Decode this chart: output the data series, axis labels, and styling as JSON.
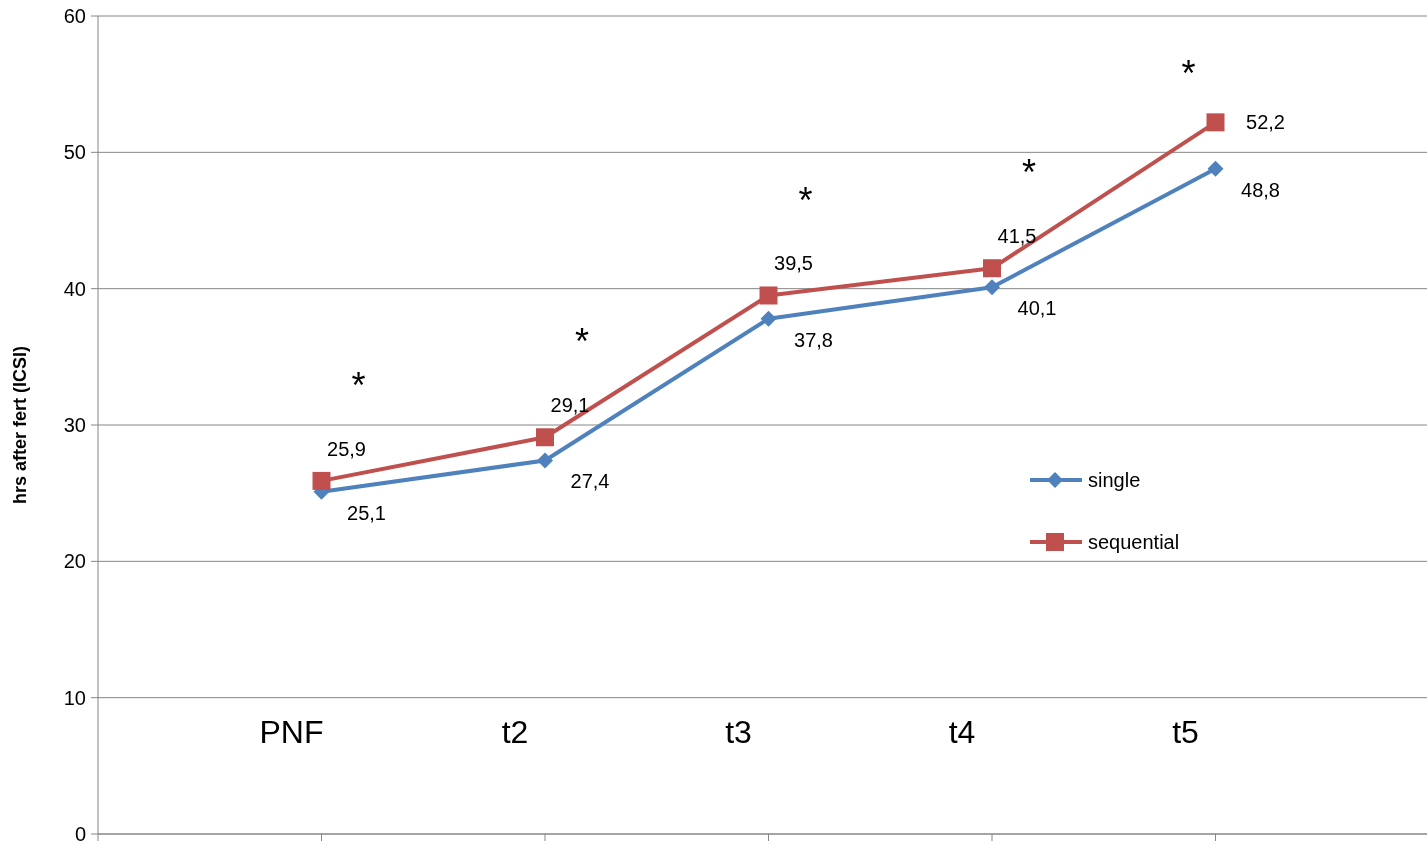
{
  "chart_data": {
    "type": "line",
    "ylabel": "hrs after fert (ICSI)",
    "categories": [
      "PNF",
      "t2",
      "t3",
      "t4",
      "t5"
    ],
    "series": [
      {
        "name": "single",
        "color": "#4f81bd",
        "marker": "diamond",
        "values": [
          25.1,
          27.4,
          37.8,
          40.1,
          48.8
        ],
        "value_labels": [
          "25,1",
          "27,4",
          "37,8",
          "40,1",
          "48,8"
        ]
      },
      {
        "name": "sequential",
        "color": "#c0504d",
        "marker": "square",
        "values": [
          25.9,
          29.1,
          39.5,
          41.5,
          52.2
        ],
        "value_labels": [
          "25,9",
          "29,1",
          "39,5",
          "41,5",
          "52,2"
        ]
      }
    ],
    "ylim": [
      0,
      60
    ],
    "yticks": [
      0,
      10,
      20,
      30,
      40,
      50,
      60
    ],
    "grid": "y",
    "legend": "right",
    "annotations": [
      "*",
      "*",
      "*",
      "*",
      "*"
    ]
  }
}
